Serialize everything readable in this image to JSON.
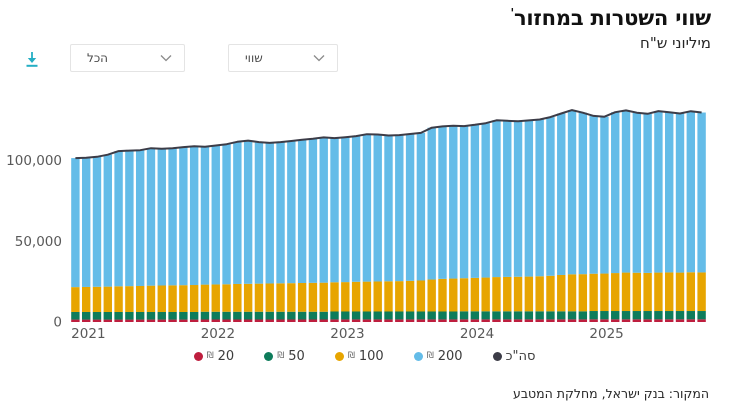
{
  "header": {
    "title": "שווי השטרות במחזור",
    "footnote_mark": "'",
    "subtitle": "מיליוני ש\"ח"
  },
  "toolbar": {
    "download_icon": "download-icon",
    "filter_dropdown_value": "הכל",
    "metric_dropdown_value": "שווי"
  },
  "source": "המקור: בנק ישראל, מחלקת המטבע",
  "colors": {
    "accent_download": "#25afc4",
    "note20": "#be1e3e",
    "note50": "#0e7c5b",
    "note100": "#e7a500",
    "note200": "#64bce8",
    "total_line": "#3c3c47",
    "axis_text": "#595959"
  },
  "legend": {
    "shekel_symbol": "₪",
    "items": [
      {
        "label": "20",
        "color": "#be1e3e",
        "shekel": true
      },
      {
        "label": "50",
        "color": "#0e7c5b",
        "shekel": true
      },
      {
        "label": "100",
        "color": "#e7a500",
        "shekel": true
      },
      {
        "label": "200",
        "color": "#64bce8",
        "shekel": true
      },
      {
        "label": "סה\"כ",
        "color": "#3c3c47",
        "shekel": false
      }
    ]
  },
  "chart_data": {
    "type": "bar",
    "subtype": "stacked-monthly-bars-with-total-line",
    "title": "שווי השטרות במחזור",
    "ylabel": "מיליוני ש\"ח",
    "ylim": [
      0,
      140000
    ],
    "yticks": [
      {
        "value": 0,
        "label": "0"
      },
      {
        "value": 50000,
        "label": "50,000"
      },
      {
        "value": 100000,
        "label": "100,000"
      }
    ],
    "x_year_labels": [
      "2021",
      "2022",
      "2023",
      "2024",
      "2025"
    ],
    "grid": false,
    "legend_position": "bottom-center",
    "months": [
      "2021-01",
      "2021-02",
      "2021-03",
      "2021-04",
      "2021-05",
      "2021-06",
      "2021-07",
      "2021-08",
      "2021-09",
      "2021-10",
      "2021-11",
      "2021-12",
      "2022-01",
      "2022-02",
      "2022-03",
      "2022-04",
      "2022-05",
      "2022-06",
      "2022-07",
      "2022-08",
      "2022-09",
      "2022-10",
      "2022-11",
      "2022-12",
      "2023-01",
      "2023-02",
      "2023-03",
      "2023-04",
      "2023-05",
      "2023-06",
      "2023-07",
      "2023-08",
      "2023-09",
      "2023-10",
      "2023-11",
      "2023-12",
      "2024-01",
      "2024-02",
      "2024-03",
      "2024-04",
      "2024-05",
      "2024-06",
      "2024-07",
      "2024-08",
      "2024-09",
      "2024-10",
      "2024-11",
      "2024-12",
      "2025-01",
      "2025-02",
      "2025-03",
      "2025-04",
      "2025-05",
      "2025-06",
      "2025-07",
      "2025-08",
      "2025-09",
      "2025-10",
      "2025-11"
    ],
    "series": [
      {
        "name": "20",
        "color": "#be1e3e",
        "values": [
          1500,
          1500,
          1500,
          1500,
          1500,
          1500,
          1500,
          1500,
          1500,
          1500,
          1500,
          1500,
          1550,
          1550,
          1550,
          1550,
          1550,
          1550,
          1550,
          1550,
          1550,
          1550,
          1550,
          1550,
          1600,
          1600,
          1600,
          1600,
          1600,
          1600,
          1600,
          1600,
          1600,
          1600,
          1600,
          1600,
          1620,
          1620,
          1620,
          1620,
          1620,
          1620,
          1620,
          1620,
          1620,
          1620,
          1620,
          1620,
          1650,
          1650,
          1650,
          1650,
          1650,
          1650,
          1650,
          1650,
          1650,
          1650,
          1650
        ]
      },
      {
        "name": "50",
        "color": "#0e7c5b",
        "values": [
          4700,
          4700,
          4700,
          4700,
          4700,
          4700,
          4700,
          4700,
          4700,
          4700,
          4700,
          4700,
          4800,
          4800,
          4800,
          4800,
          4800,
          4800,
          4800,
          4800,
          4800,
          4800,
          4800,
          4800,
          4900,
          4900,
          4900,
          4900,
          4900,
          4900,
          4900,
          4900,
          4900,
          4900,
          4900,
          4900,
          5000,
          5000,
          5000,
          5000,
          5000,
          5000,
          5000,
          5000,
          5000,
          5000,
          5000,
          5000,
          5150,
          5150,
          5150,
          5150,
          5150,
          5150,
          5150,
          5150,
          5150,
          5150,
          5150
        ]
      },
      {
        "name": "100",
        "color": "#e7a500",
        "values": [
          15400,
          15500,
          15600,
          15700,
          15900,
          16000,
          16100,
          16300,
          16400,
          16500,
          16600,
          16700,
          16800,
          16900,
          17000,
          17200,
          17300,
          17400,
          17500,
          17600,
          17700,
          17800,
          17900,
          18000,
          18100,
          18200,
          18400,
          18500,
          18600,
          18700,
          18800,
          19000,
          19200,
          19800,
          20200,
          20400,
          20500,
          20700,
          20900,
          21200,
          21300,
          21400,
          21500,
          21700,
          22000,
          22500,
          22900,
          23000,
          23100,
          23200,
          23500,
          23800,
          23700,
          23600,
          23800,
          23900,
          23800,
          24000,
          23900
        ]
      },
      {
        "name": "200",
        "color": "#64bce8",
        "values": [
          79900,
          80000,
          80500,
          81700,
          83700,
          83900,
          84100,
          85100,
          84700,
          84900,
          85500,
          85900,
          85350,
          86050,
          86750,
          88050,
          88650,
          87650,
          87050,
          87450,
          88050,
          88750,
          89250,
          89950,
          89300,
          89700,
          90200,
          91300,
          91000,
          90300,
          90400,
          90900,
          91400,
          94000,
          94400,
          94600,
          94180,
          94780,
          95580,
          97080,
          96680,
          96280,
          96680,
          97080,
          98280,
          99980,
          101680,
          99980,
          97700,
          97100,
          99600,
          100400,
          99100,
          98500,
          100000,
          99200,
          98500,
          99700,
          99000
        ]
      }
    ],
    "total_line": {
      "name": "סה\"כ",
      "color": "#3c3c47",
      "derived": "sum-of-stacked-series"
    }
  }
}
